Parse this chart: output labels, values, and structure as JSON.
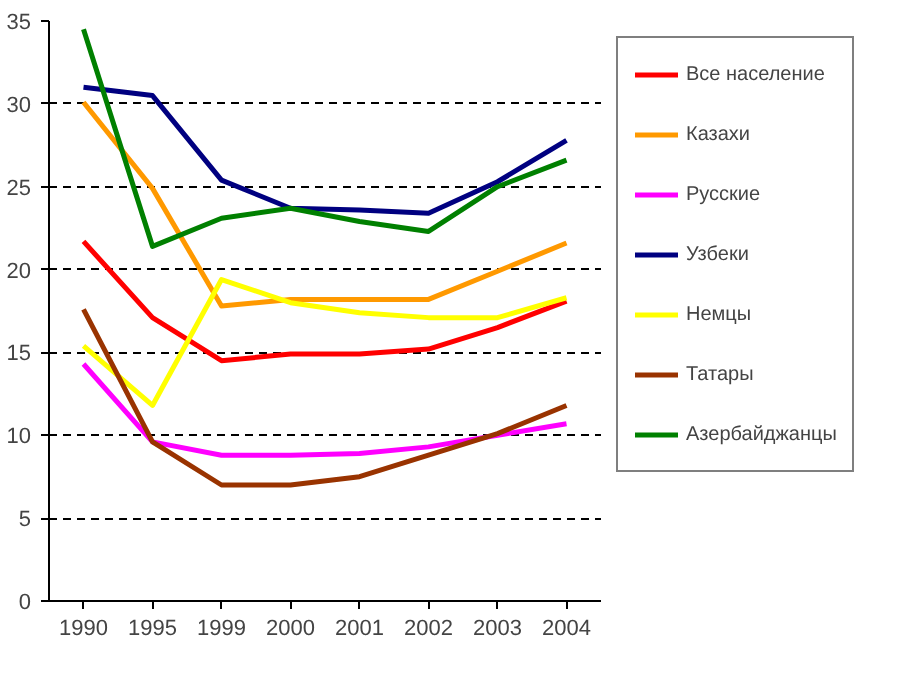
{
  "chart_data": {
    "type": "line",
    "categories": [
      "1990",
      "1995",
      "1999",
      "2000",
      "2001",
      "2002",
      "2003",
      "2004"
    ],
    "ylim": [
      0,
      35
    ],
    "yticks": [
      0,
      5,
      10,
      15,
      20,
      25,
      30,
      35
    ],
    "grid": "y",
    "legend": "right",
    "line_style": "solid",
    "marker": "none",
    "series": [
      {
        "name": "Все население",
        "color": "#ff0000",
        "values": [
          21.7,
          17.1,
          14.5,
          14.9,
          14.9,
          15.2,
          16.5,
          18.1
        ]
      },
      {
        "name": "Казахи",
        "color": "#ff9900",
        "values": [
          30.1,
          24.9,
          17.8,
          18.2,
          18.2,
          18.2,
          19.9,
          21.6
        ]
      },
      {
        "name": "Русские",
        "color": "#ff00ff",
        "values": [
          14.3,
          9.6,
          8.8,
          8.8,
          8.9,
          9.3,
          10.0,
          10.7
        ]
      },
      {
        "name": "Узбеки",
        "color": "#000080",
        "values": [
          31.0,
          30.5,
          25.4,
          23.7,
          23.6,
          23.4,
          25.3,
          27.8
        ]
      },
      {
        "name": "Немцы",
        "color": "#ffff00",
        "values": [
          15.4,
          11.8,
          19.4,
          18.0,
          17.4,
          17.1,
          17.1,
          18.3
        ]
      },
      {
        "name": "Татары",
        "color": "#993300",
        "values": [
          17.6,
          9.6,
          7.0,
          7.0,
          7.5,
          8.8,
          10.1,
          11.8
        ]
      },
      {
        "name": "Азербайджанцы",
        "color": "#008000",
        "values": [
          34.5,
          21.4,
          23.1,
          23.7,
          22.9,
          22.3,
          25.0,
          26.6
        ]
      }
    ]
  }
}
